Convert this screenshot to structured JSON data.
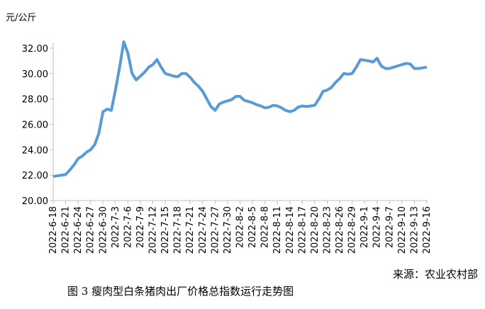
{
  "chart_data": {
    "type": "line",
    "unit_label": "元/公斤",
    "caption": "图 3 瘦肉型白条猪肉出厂价格总指数运行走势图",
    "source": "来源：农业农村部",
    "categories": [
      "2022-6-18",
      null,
      null,
      "2022-6-21",
      null,
      null,
      "2022-6-24",
      null,
      null,
      "2022-6-27",
      null,
      null,
      "2022-6-30",
      null,
      null,
      "2022-7-3",
      null,
      null,
      "2022-7-6",
      null,
      null,
      "2022-7-9",
      null,
      null,
      "2022-7-12",
      null,
      null,
      "2022-7-15",
      null,
      null,
      "2022-7-18",
      null,
      null,
      "2022-7-21",
      null,
      null,
      "2022-7-24",
      null,
      null,
      "2022-7-27",
      null,
      null,
      "2022-7-30",
      null,
      null,
      "2022-8-2",
      null,
      null,
      "2022-8-5",
      null,
      null,
      "2022-8-8",
      null,
      null,
      "2022-8-11",
      null,
      null,
      "2022-8-14",
      null,
      null,
      "2022-8-17",
      null,
      null,
      "2022-8-20",
      null,
      null,
      "2022-8-23",
      null,
      null,
      "2022-8-26",
      null,
      null,
      "2022-8-29",
      null,
      null,
      "2022-9-1",
      null,
      null,
      "2022-9-4",
      null,
      null,
      "2022-9-7",
      null,
      null,
      "2022-9-10",
      null,
      null,
      "2022-9-13",
      null,
      null,
      "2022-9-16"
    ],
    "series": [
      {
        "color": "#5b9bd5",
        "values": [
          21.9,
          21.95,
          22.0,
          22.05,
          22.4,
          22.8,
          23.3,
          23.5,
          23.8,
          24.0,
          24.4,
          25.3,
          27.0,
          27.2,
          27.1,
          28.7,
          30.5,
          32.5,
          31.6,
          30.0,
          29.5,
          29.8,
          30.1,
          30.5,
          30.7,
          31.1,
          30.5,
          30.0,
          29.9,
          29.8,
          29.75,
          30.0,
          30.0,
          29.7,
          29.3,
          29.0,
          28.6,
          28.0,
          27.4,
          27.1,
          27.6,
          27.75,
          27.85,
          27.95,
          28.2,
          28.2,
          27.9,
          27.8,
          27.7,
          27.55,
          27.45,
          27.3,
          27.35,
          27.5,
          27.45,
          27.3,
          27.1,
          27.0,
          27.1,
          27.35,
          27.45,
          27.4,
          27.45,
          27.5,
          28.0,
          28.6,
          28.7,
          28.9,
          29.3,
          29.6,
          30.0,
          29.95,
          30.0,
          30.5,
          31.1,
          31.05,
          31.0,
          30.9,
          31.2,
          30.6,
          30.4,
          30.4,
          30.5,
          30.6,
          30.7,
          30.8,
          30.75,
          30.4,
          30.4,
          30.45,
          30.5
        ]
      }
    ],
    "ylim": [
      20,
      33
    ],
    "yticks": [
      {
        "value": 20,
        "label": "20.00"
      },
      {
        "value": 22,
        "label": "22.00"
      },
      {
        "value": 24,
        "label": "24.00"
      },
      {
        "value": 26,
        "label": "26.00"
      },
      {
        "value": 28,
        "label": "28.00"
      },
      {
        "value": 30,
        "label": "30.00"
      },
      {
        "value": 32,
        "label": "32.00"
      }
    ],
    "grid": false
  }
}
